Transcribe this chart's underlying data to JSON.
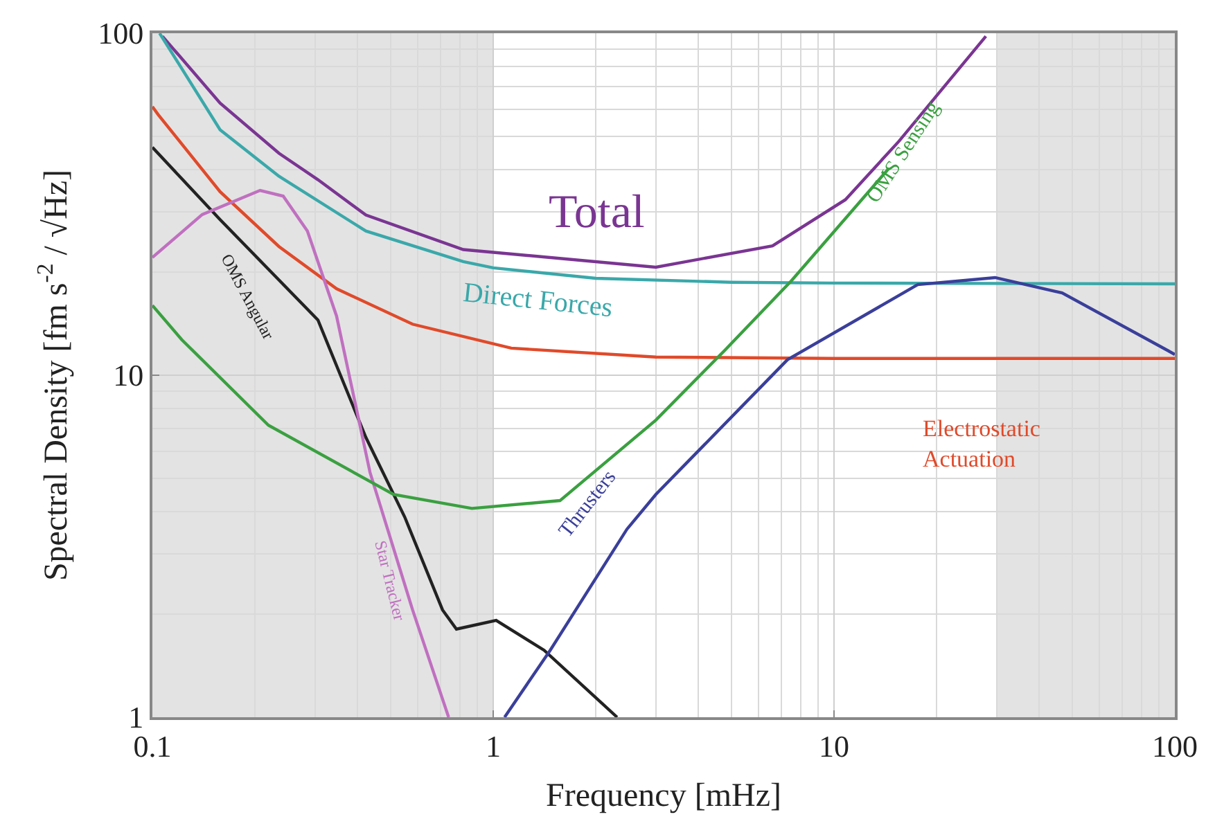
{
  "chart_data": {
    "type": "line",
    "xlabel": "Frequency [mHz]",
    "ylabel": "Spectral Density [fm s$^{-2}$ / √Hz]",
    "log": "xy",
    "xlim": [
      0.1,
      100
    ],
    "ylim": [
      1,
      100
    ],
    "xticks": [
      0.1,
      1,
      10,
      100
    ],
    "yticks": [
      1,
      10,
      100
    ],
    "grid": true,
    "line_style": "solid",
    "bands": [
      {
        "axis": "x",
        "from": 0.1,
        "to": 1,
        "color": "#e3e3e3"
      },
      {
        "axis": "x",
        "from": 30,
        "to": 100,
        "color": "#e3e3e3"
      }
    ],
    "series": [
      {
        "name": "Total",
        "color": "#7a3592",
        "x": [
          0.107,
          0.158,
          0.235,
          0.306,
          0.423,
          0.817,
          3.0,
          6.6,
          10.8,
          15.5,
          27.9
        ],
        "values": [
          98,
          62.5,
          44.6,
          37.3,
          29.4,
          23.3,
          20.7,
          23.9,
          32.6,
          48.3,
          98
        ]
      },
      {
        "name": "Direct Forces",
        "color": "#3aa8aa",
        "x": [
          0.105,
          0.158,
          0.235,
          0.423,
          0.817,
          1,
          2,
          5,
          10,
          100
        ],
        "values": [
          100,
          52.2,
          38.2,
          26.4,
          21.5,
          20.6,
          19.2,
          18.7,
          18.6,
          18.5
        ]
      },
      {
        "name": "Electrostatic Actuation",
        "color": "#e04a2a",
        "x": [
          0.1,
          0.104,
          0.158,
          0.235,
          0.347,
          0.58,
          1.13,
          3,
          10,
          100
        ],
        "values": [
          61,
          57.8,
          34.4,
          23.8,
          17.9,
          14.1,
          12.0,
          11.3,
          11.2,
          11.2
        ]
      },
      {
        "name": "OMS Angular",
        "color": "#222222",
        "x": [
          0.1,
          0.158,
          0.306,
          0.423,
          0.55,
          0.71,
          0.78,
          1.02,
          1.41,
          2.31
        ],
        "values": [
          46.4,
          28.5,
          14.5,
          6.58,
          3.85,
          2.06,
          1.81,
          1.92,
          1.57,
          1.0
        ]
      },
      {
        "name": "Star Tracker",
        "color": "#c070c0",
        "x": [
          0.1,
          0.14,
          0.207,
          0.242,
          0.285,
          0.347,
          0.435,
          0.58,
          0.74
        ],
        "values": [
          22.1,
          29.5,
          34.7,
          33.4,
          26.4,
          14.9,
          5.2,
          2.06,
          1.0
        ]
      },
      {
        "name": "OMS Sensing",
        "color": "#3aa040",
        "x": [
          0.1,
          0.122,
          0.219,
          0.51,
          0.866,
          1.57,
          3.0,
          4.77,
          7.5,
          14.5
        ],
        "values": [
          16.0,
          12.7,
          7.14,
          4.48,
          4.08,
          4.3,
          7.39,
          11.8,
          18.9,
          40.3
        ]
      },
      {
        "name": "Thrusters",
        "color": "#3a3f9a",
        "x": [
          1.08,
          1.47,
          2.47,
          3.0,
          7.3,
          17.6,
          29.7,
          46.7,
          95.5,
          100
        ],
        "values": [
          1.0,
          1.57,
          3.55,
          4.48,
          11.1,
          18.4,
          19.3,
          17.4,
          11.8,
          11.5
        ]
      }
    ]
  }
}
